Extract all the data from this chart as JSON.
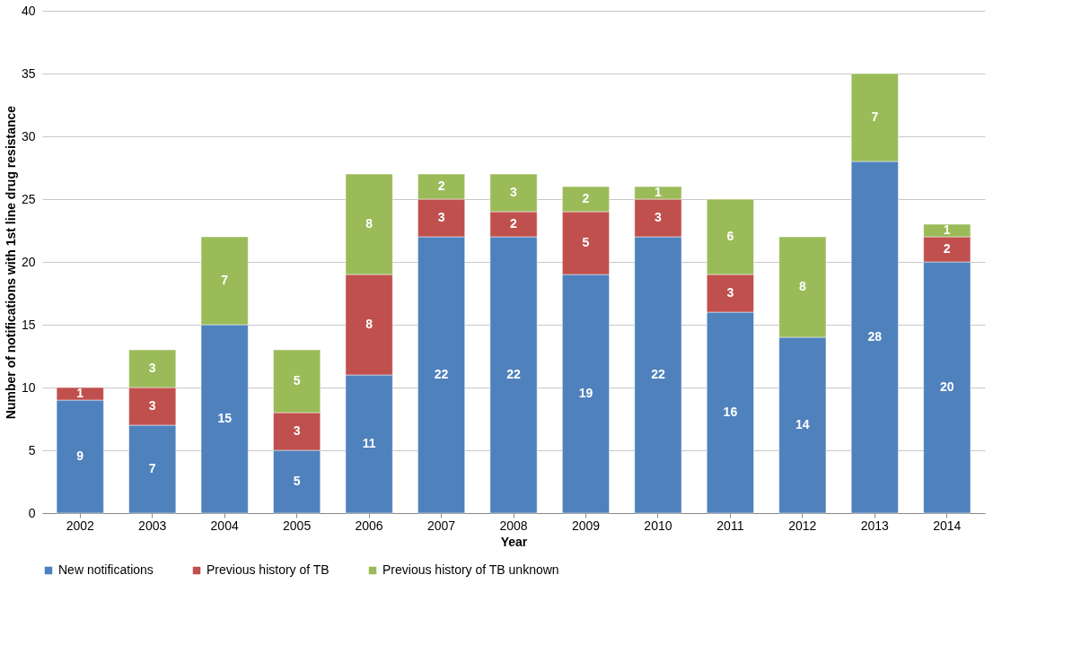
{
  "chart_data": {
    "type": "bar",
    "stacked": true,
    "xlabel": "Year",
    "ylabel": "Number of notifications with 1st line drug resistance",
    "categories": [
      "2002",
      "2003",
      "2004",
      "2005",
      "2006",
      "2007",
      "2008",
      "2009",
      "2010",
      "2011",
      "2012",
      "2013",
      "2014"
    ],
    "series": [
      {
        "name": "New notifications",
        "color": "#4f81bd",
        "values": [
          9,
          7,
          15,
          5,
          11,
          22,
          22,
          19,
          22,
          16,
          14,
          28,
          20
        ]
      },
      {
        "name": "Previous history of TB",
        "color": "#c0504d",
        "values": [
          1,
          3,
          null,
          3,
          8,
          3,
          2,
          5,
          3,
          3,
          null,
          null,
          2
        ]
      },
      {
        "name": "Previous history of TB unknown",
        "color": "#9bbb59",
        "values": [
          null,
          3,
          7,
          5,
          8,
          2,
          3,
          2,
          1,
          6,
          8,
          7,
          1
        ]
      }
    ],
    "ylim": [
      0,
      40
    ],
    "yticks": [
      0,
      5,
      10,
      15,
      20,
      25,
      30,
      35,
      40
    ],
    "grid": "y",
    "legend": "bottom",
    "data_labels": true
  }
}
